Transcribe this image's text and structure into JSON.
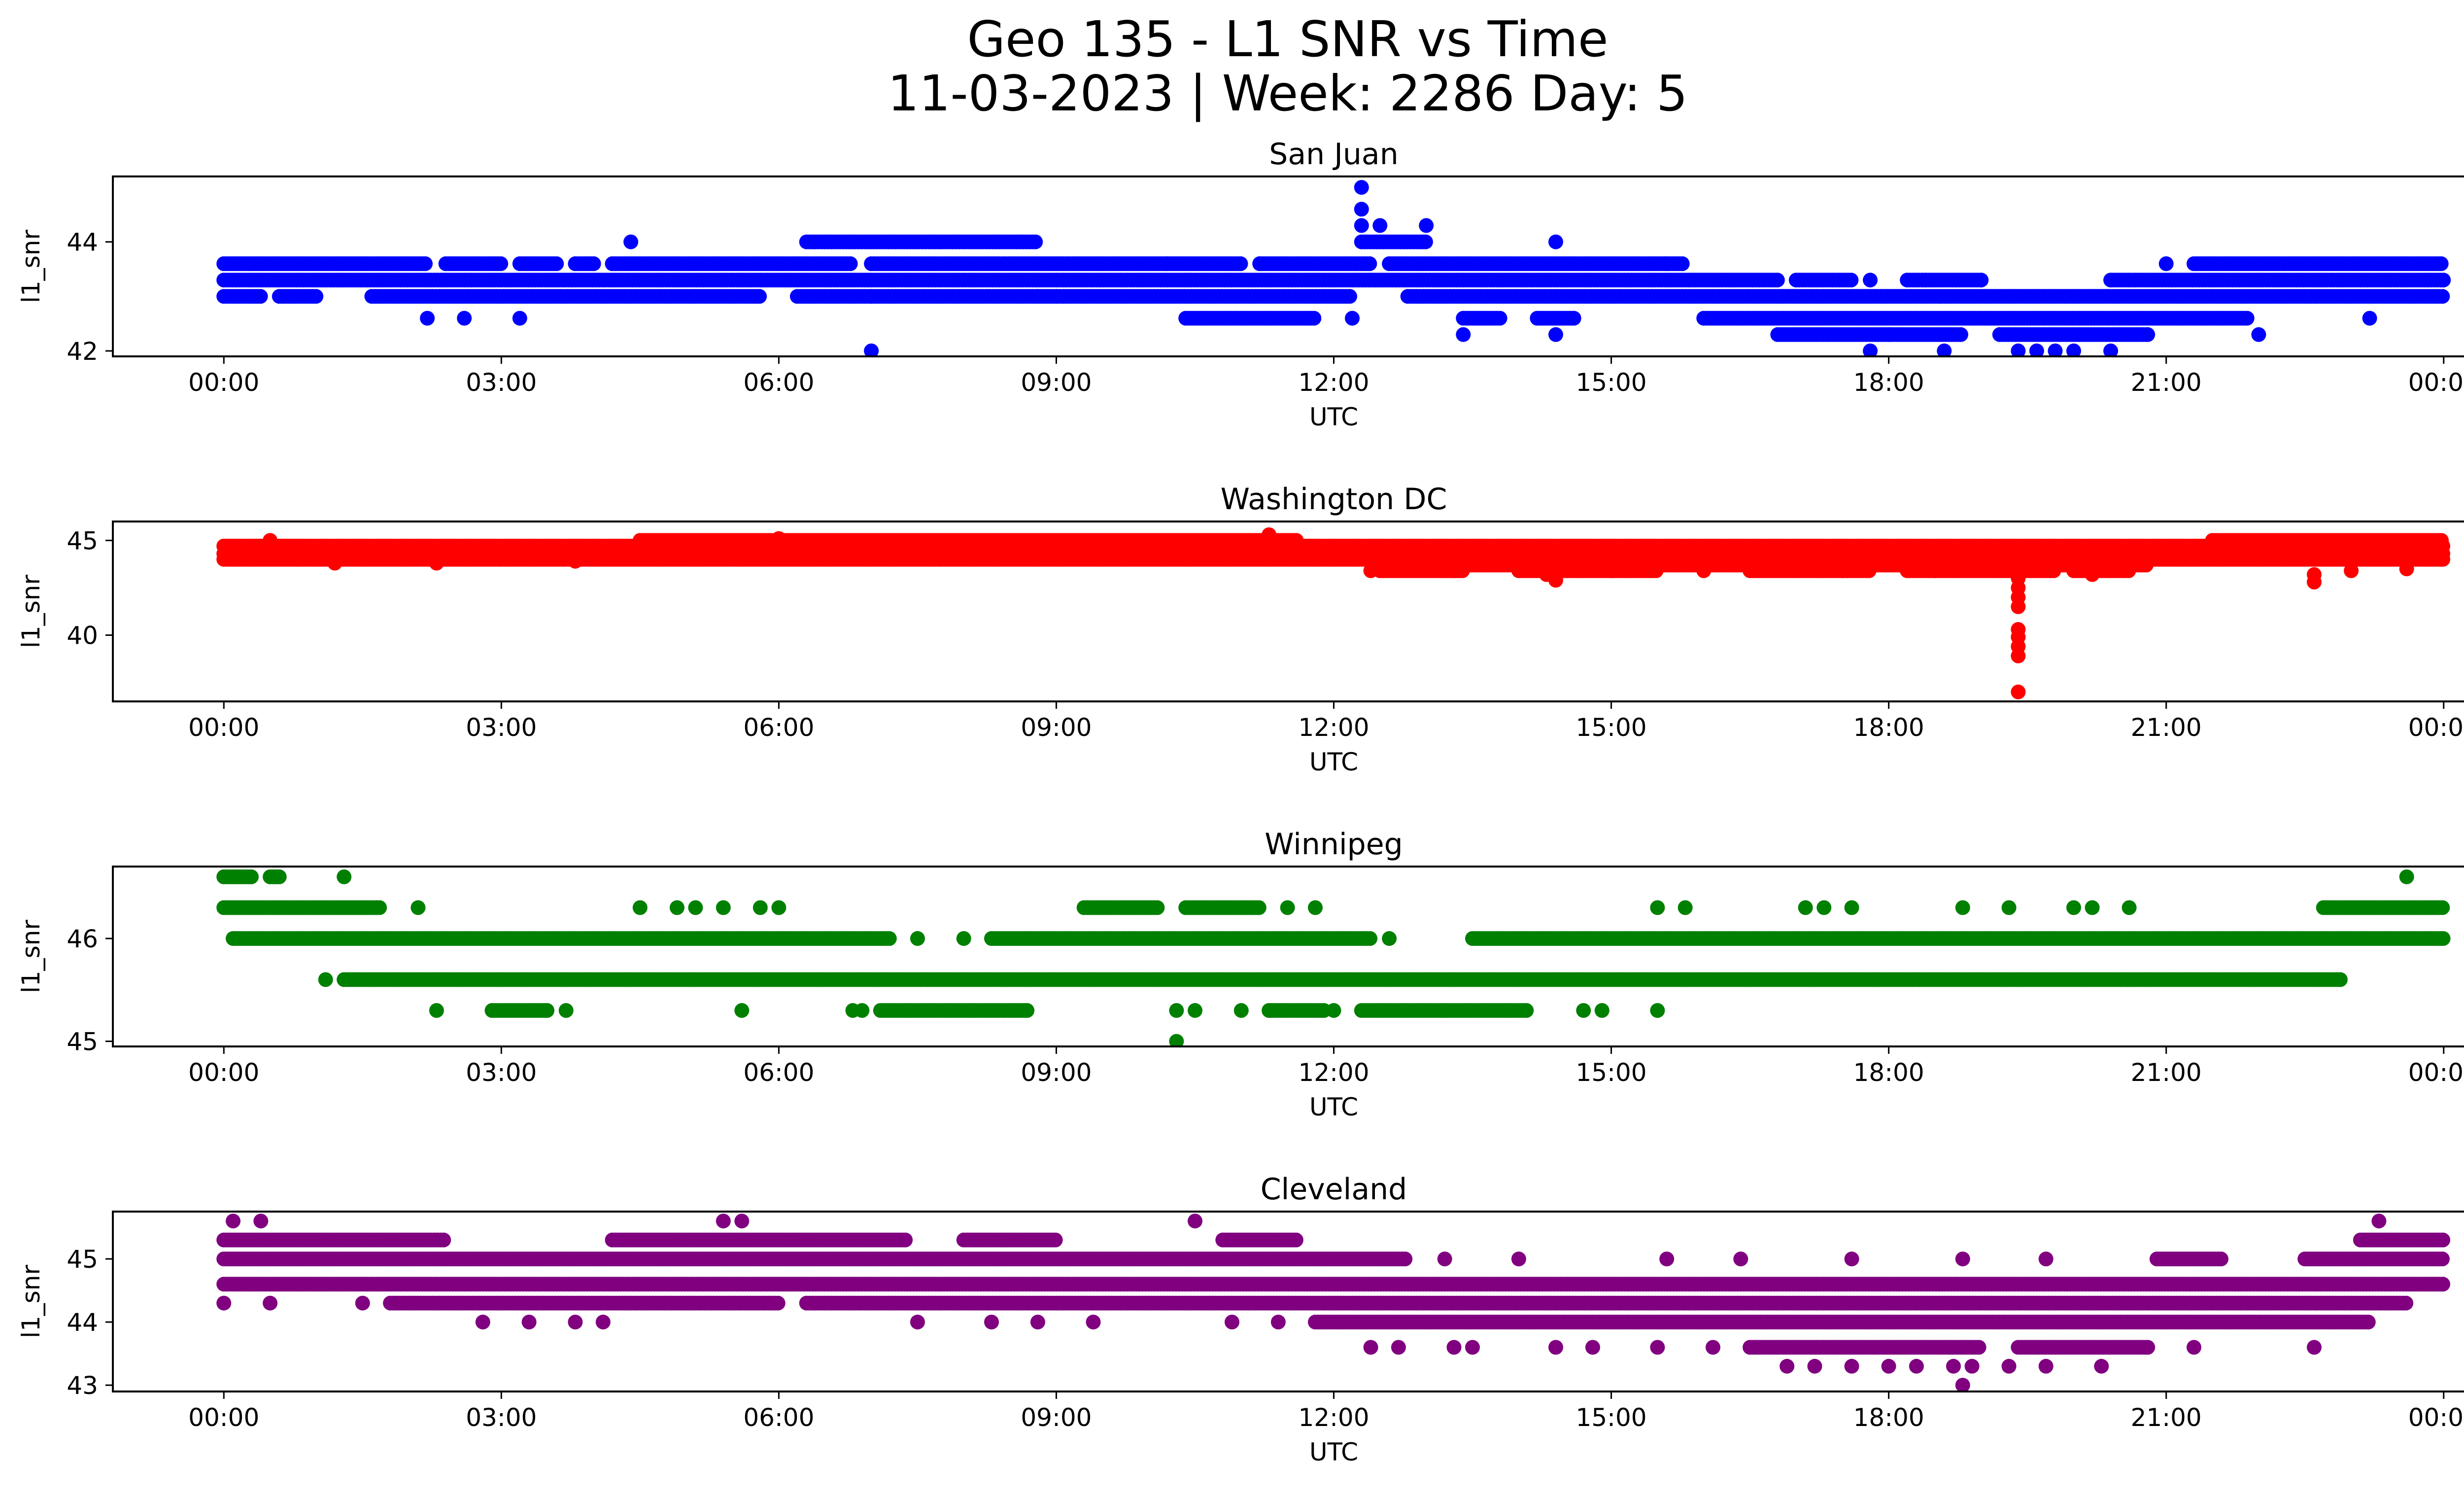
{
  "figure": {
    "title_line1": "Geo 135 - L1 SNR vs Time",
    "title_line2": "11-03-2023 | Week: 2286 Day: 5"
  },
  "chart_data": [
    {
      "type": "scatter",
      "title": "San Juan",
      "xlabel": "UTC",
      "ylabel": "l1_snr",
      "color": "#0000ff",
      "xlim": [
        -1.2,
        25.2
      ],
      "ylim": [
        41.9,
        45.2
      ],
      "x_ticks": [
        0,
        3,
        6,
        9,
        12,
        15,
        18,
        21,
        24
      ],
      "x_tick_labels": [
        "00:00",
        "03:00",
        "06:00",
        "09:00",
        "12:00",
        "15:00",
        "18:00",
        "21:00",
        "00:00"
      ],
      "y_ticks": [
        42,
        44
      ],
      "y_tick_labels": [
        "42",
        "44"
      ],
      "bands": [
        {
          "y": 43.6,
          "x": [
            [
              0.0,
              2.2
            ],
            [
              2.4,
              3.0
            ],
            [
              3.2,
              3.6
            ],
            [
              3.8,
              4.0
            ],
            [
              4.2,
              6.8
            ],
            [
              7.0,
              11.0
            ],
            [
              11.2,
              12.4
            ],
            [
              12.6,
              15.8
            ],
            [
              21.3,
              24.0
            ]
          ]
        },
        {
          "y": 43.3,
          "x": [
            [
              0.0,
              16.8
            ],
            [
              17.0,
              17.6
            ],
            [
              18.2,
              19.0
            ],
            [
              20.4,
              24.0
            ]
          ]
        },
        {
          "y": 43.0,
          "x": [
            [
              0.0,
              0.4
            ],
            [
              0.6,
              1.0
            ],
            [
              1.6,
              5.8
            ],
            [
              6.2,
              12.2
            ],
            [
              12.8,
              24.0
            ]
          ]
        },
        {
          "y": 42.6,
          "x": [
            [
              10.4,
              11.8
            ],
            [
              13.4,
              13.8
            ],
            [
              14.2,
              14.6
            ],
            [
              16.0,
              21.9
            ]
          ]
        },
        {
          "y": 42.3,
          "x": [
            [
              16.8,
              18.8
            ],
            [
              19.2,
              20.8
            ]
          ]
        },
        {
          "y": 44.0,
          "x": [
            [
              6.3,
              8.8
            ],
            [
              12.3,
              13.0
            ]
          ]
        }
      ],
      "points": [
        [
          2.2,
          42.6
        ],
        [
          2.6,
          42.6
        ],
        [
          3.2,
          42.6
        ],
        [
          4.4,
          44.0
        ],
        [
          7.0,
          42.0
        ],
        [
          7.0,
          43.0
        ],
        [
          8.8,
          43.0
        ],
        [
          9.0,
          43.0
        ],
        [
          10.2,
          43.6
        ],
        [
          12.2,
          42.6
        ],
        [
          12.3,
          45.0
        ],
        [
          12.3,
          44.6
        ],
        [
          12.3,
          44.3
        ],
        [
          12.5,
          44.3
        ],
        [
          13.0,
          44.3
        ],
        [
          13.4,
          42.3
        ],
        [
          14.4,
          44.0
        ],
        [
          14.4,
          42.3
        ],
        [
          17.8,
          42.0
        ],
        [
          17.8,
          43.3
        ],
        [
          18.4,
          43.3
        ],
        [
          18.6,
          42.0
        ],
        [
          19.0,
          43.3
        ],
        [
          19.4,
          42.0
        ],
        [
          19.6,
          42.0
        ],
        [
          19.8,
          42.0
        ],
        [
          20.0,
          42.0
        ],
        [
          20.4,
          42.0
        ],
        [
          20.8,
          42.3
        ],
        [
          21.0,
          43.6
        ],
        [
          22.0,
          42.3
        ],
        [
          23.2,
          42.6
        ],
        [
          19.2,
          42.3
        ],
        [
          18.0,
          42.3
        ],
        [
          15.6,
          43.6
        ],
        [
          11.2,
          43.6
        ]
      ]
    },
    {
      "type": "scatter",
      "title": "Washington DC",
      "xlabel": "UTC",
      "ylabel": "l1_snr",
      "color": "#ff0000",
      "xlim": [
        -1.2,
        25.2
      ],
      "ylim": [
        36.5,
        46.0
      ],
      "x_ticks": [
        0,
        3,
        6,
        9,
        12,
        15,
        18,
        21,
        24
      ],
      "x_tick_labels": [
        "00:00",
        "03:00",
        "06:00",
        "09:00",
        "12:00",
        "15:00",
        "18:00",
        "21:00",
        "00:00"
      ],
      "y_ticks": [
        40,
        45
      ],
      "y_tick_labels": [
        "40",
        "45"
      ],
      "bands": [
        {
          "y": 44.7,
          "x": [
            [
              0.0,
              24.0
            ]
          ]
        },
        {
          "y": 44.3,
          "x": [
            [
              0.0,
              24.0
            ]
          ]
        },
        {
          "y": 44.0,
          "x": [
            [
              0.0,
              24.0
            ]
          ]
        },
        {
          "y": 45.0,
          "x": [
            [
              4.5,
              11.6
            ],
            [
              21.5,
              24.0
            ]
          ]
        },
        {
          "y": 43.7,
          "x": [
            [
              12.5,
              20.8
            ]
          ]
        },
        {
          "y": 43.4,
          "x": [
            [
              12.5,
              13.4
            ],
            [
              14.0,
              15.5
            ],
            [
              16.5,
              17.8
            ],
            [
              18.2,
              19.8
            ],
            [
              20.0,
              20.6
            ]
          ]
        }
      ],
      "points": [
        [
          0.5,
          45.0
        ],
        [
          0.8,
          44.0
        ],
        [
          1.2,
          43.8
        ],
        [
          2.3,
          43.8
        ],
        [
          3.8,
          43.9
        ],
        [
          6.0,
          45.1
        ],
        [
          11.3,
          45.3
        ],
        [
          12.4,
          43.4
        ],
        [
          13.3,
          43.4
        ],
        [
          14.3,
          43.2
        ],
        [
          14.4,
          42.9
        ],
        [
          15.0,
          43.4
        ],
        [
          16.0,
          43.4
        ],
        [
          16.5,
          44.6
        ],
        [
          17.5,
          43.4
        ],
        [
          18.5,
          43.4
        ],
        [
          19.4,
          43.0
        ],
        [
          19.4,
          42.5
        ],
        [
          19.4,
          42.0
        ],
        [
          19.4,
          41.5
        ],
        [
          19.4,
          40.3
        ],
        [
          19.4,
          39.9
        ],
        [
          19.4,
          39.4
        ],
        [
          19.4,
          38.9
        ],
        [
          19.4,
          37.0
        ],
        [
          20.2,
          43.2
        ],
        [
          22.6,
          43.2
        ],
        [
          22.6,
          42.8
        ],
        [
          23.0,
          43.4
        ],
        [
          23.6,
          43.5
        ],
        [
          23.9,
          44.9
        ]
      ]
    },
    {
      "type": "scatter",
      "title": "Winnipeg",
      "xlabel": "UTC",
      "ylabel": "l1_snr",
      "color": "#008000",
      "xlim": [
        -1.2,
        25.2
      ],
      "ylim": [
        44.95,
        46.7
      ],
      "x_ticks": [
        0,
        3,
        6,
        9,
        12,
        15,
        18,
        21,
        24
      ],
      "x_tick_labels": [
        "00:00",
        "03:00",
        "06:00",
        "09:00",
        "12:00",
        "15:00",
        "18:00",
        "21:00",
        "00:00"
      ],
      "y_ticks": [
        45,
        46
      ],
      "y_tick_labels": [
        "45",
        "46"
      ],
      "bands": [
        {
          "y": 46.6,
          "x": [
            [
              0.0,
              0.3
            ],
            [
              0.5,
              0.6
            ]
          ]
        },
        {
          "y": 46.3,
          "x": [
            [
              0.0,
              1.7
            ],
            [
              9.3,
              10.1
            ],
            [
              10.4,
              11.2
            ],
            [
              22.7,
              24.0
            ]
          ]
        },
        {
          "y": 46.0,
          "x": [
            [
              0.1,
              7.2
            ],
            [
              8.3,
              12.4
            ],
            [
              13.5,
              24.0
            ]
          ]
        },
        {
          "y": 45.6,
          "x": [
            [
              1.3,
              22.9
            ]
          ]
        },
        {
          "y": 45.3,
          "x": [
            [
              2.9,
              3.5
            ],
            [
              7.1,
              8.7
            ],
            [
              11.3,
              11.9
            ],
            [
              12.3,
              14.1
            ]
          ]
        }
      ],
      "points": [
        [
          1.3,
          46.6
        ],
        [
          1.1,
          45.6
        ],
        [
          2.1,
          46.3
        ],
        [
          2.3,
          45.3
        ],
        [
          3.7,
          45.3
        ],
        [
          4.5,
          46.3
        ],
        [
          4.9,
          46.3
        ],
        [
          5.1,
          46.3
        ],
        [
          5.4,
          46.3
        ],
        [
          5.8,
          46.3
        ],
        [
          6.0,
          46.3
        ],
        [
          5.6,
          45.3
        ],
        [
          6.8,
          45.3
        ],
        [
          6.9,
          45.3
        ],
        [
          7.5,
          46.0
        ],
        [
          8.0,
          46.0
        ],
        [
          10.3,
          45.3
        ],
        [
          10.3,
          45.0
        ],
        [
          10.5,
          45.3
        ],
        [
          11.0,
          45.3
        ],
        [
          11.5,
          46.3
        ],
        [
          11.8,
          46.3
        ],
        [
          12.0,
          45.3
        ],
        [
          12.6,
          46.0
        ],
        [
          14.7,
          45.3
        ],
        [
          14.9,
          45.3
        ],
        [
          15.5,
          45.3
        ],
        [
          15.5,
          46.3
        ],
        [
          15.8,
          46.3
        ],
        [
          17.1,
          46.3
        ],
        [
          17.3,
          46.3
        ],
        [
          17.6,
          46.3
        ],
        [
          18.8,
          46.3
        ],
        [
          19.3,
          46.3
        ],
        [
          20.0,
          46.3
        ],
        [
          20.2,
          46.3
        ],
        [
          20.6,
          46.3
        ],
        [
          23.6,
          46.6
        ]
      ]
    },
    {
      "type": "scatter",
      "title": "Cleveland",
      "xlabel": "UTC",
      "ylabel": "l1_snr",
      "color": "#800080",
      "xlim": [
        -1.2,
        25.2
      ],
      "ylim": [
        42.9,
        45.75
      ],
      "x_ticks": [
        0,
        3,
        6,
        9,
        12,
        15,
        18,
        21,
        24
      ],
      "x_tick_labels": [
        "00:00",
        "03:00",
        "06:00",
        "09:00",
        "12:00",
        "15:00",
        "18:00",
        "21:00",
        "00:00"
      ],
      "y_ticks": [
        43,
        44,
        45
      ],
      "y_tick_labels": [
        "43",
        "44",
        "45"
      ],
      "bands": [
        {
          "y": 45.3,
          "x": [
            [
              0.0,
              2.4
            ],
            [
              4.2,
              7.4
            ],
            [
              8.0,
              9.0
            ],
            [
              10.8,
              11.6
            ],
            [
              23.1,
              24.0
            ]
          ]
        },
        {
          "y": 45.0,
          "x": [
            [
              0.0,
              12.8
            ],
            [
              20.9,
              21.6
            ],
            [
              22.5,
              24.0
            ]
          ]
        },
        {
          "y": 44.6,
          "x": [
            [
              0.0,
              24.0
            ]
          ]
        },
        {
          "y": 44.3,
          "x": [
            [
              1.8,
              6.0
            ],
            [
              6.3,
              23.6
            ]
          ]
        },
        {
          "y": 44.0,
          "x": [
            [
              11.8,
              23.2
            ]
          ]
        },
        {
          "y": 43.6,
          "x": [
            [
              16.5,
              19.0
            ],
            [
              19.4,
              20.8
            ]
          ]
        }
      ],
      "points": [
        [
          0.1,
          45.6
        ],
        [
          0.4,
          45.6
        ],
        [
          0.5,
          44.3
        ],
        [
          0.0,
          44.3
        ],
        [
          1.5,
          44.3
        ],
        [
          2.8,
          44.0
        ],
        [
          3.3,
          44.0
        ],
        [
          3.8,
          44.0
        ],
        [
          4.1,
          44.0
        ],
        [
          5.4,
          45.6
        ],
        [
          5.6,
          45.6
        ],
        [
          7.5,
          44.0
        ],
        [
          8.3,
          44.0
        ],
        [
          8.8,
          44.0
        ],
        [
          9.4,
          44.0
        ],
        [
          10.5,
          45.6
        ],
        [
          10.9,
          44.0
        ],
        [
          11.4,
          44.0
        ],
        [
          12.4,
          43.6
        ],
        [
          12.7,
          43.6
        ],
        [
          13.3,
          43.6
        ],
        [
          13.5,
          43.6
        ],
        [
          14.4,
          43.6
        ],
        [
          14.8,
          43.6
        ],
        [
          15.5,
          43.6
        ],
        [
          16.1,
          43.6
        ],
        [
          16.9,
          43.3
        ],
        [
          17.2,
          43.3
        ],
        [
          17.6,
          43.3
        ],
        [
          18.0,
          43.3
        ],
        [
          18.3,
          43.3
        ],
        [
          18.7,
          43.3
        ],
        [
          18.8,
          43.0
        ],
        [
          18.9,
          43.3
        ],
        [
          19.3,
          43.3
        ],
        [
          19.7,
          43.3
        ],
        [
          20.3,
          43.3
        ],
        [
          20.8,
          43.6
        ],
        [
          21.3,
          43.6
        ],
        [
          22.6,
          43.6
        ],
        [
          23.3,
          45.6
        ],
        [
          13.2,
          45.0
        ],
        [
          14.0,
          45.0
        ],
        [
          15.6,
          45.0
        ],
        [
          16.4,
          45.0
        ],
        [
          17.6,
          45.0
        ],
        [
          18.8,
          45.0
        ],
        [
          19.7,
          45.0
        ]
      ]
    }
  ]
}
